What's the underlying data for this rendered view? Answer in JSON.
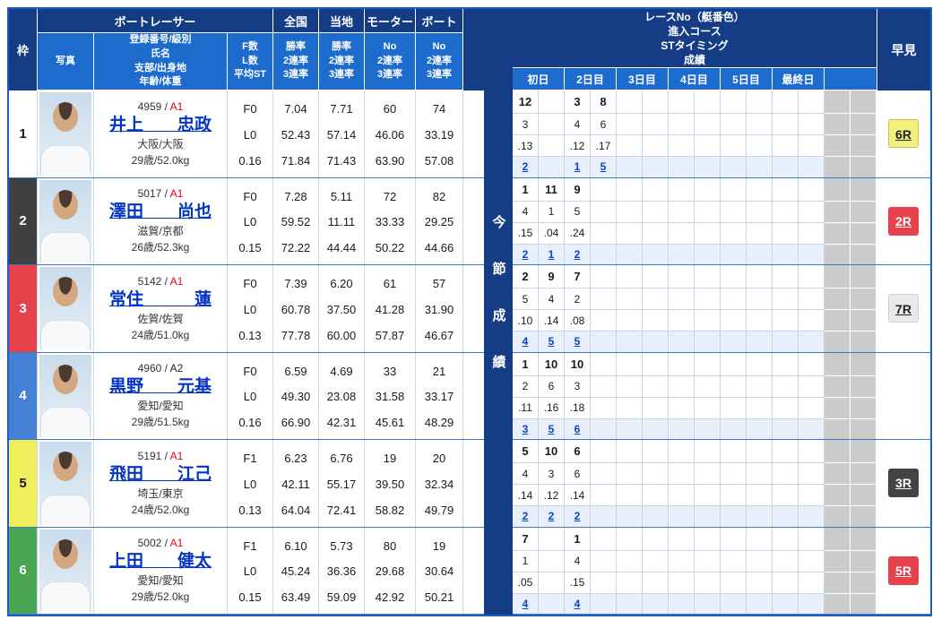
{
  "header": {
    "frame_label": "枠",
    "racer_group_label": "ボートレーサー",
    "photo_label": "写真",
    "profile_label": "登録番号/級別\n氏名\n支部/出身地\n年齢/体重",
    "fl_label": "F数\nL数\n平均ST",
    "national_label": "全国",
    "local_label": "当地",
    "motor_label": "モーター",
    "boat_label": "ボート",
    "rate_label": "勝率\n2連率\n3連率",
    "no_rate_label": "No\n2連率\n3連率",
    "race_info_label": "レースNo（艇番色）\n進入コース\nSTタイミング\n成績",
    "days": [
      "初日",
      "2日目",
      "3日目",
      "4日目",
      "5日目",
      "最終日"
    ],
    "hayami_label": "早見",
    "series_label": "今節成績",
    "reg_separator": " / "
  },
  "racers": [
    {
      "frame": "1",
      "frame_color": "white",
      "reg_no": "4959",
      "class": "A1",
      "name": "井上　　忠政",
      "branch": "大阪/大阪",
      "age_weight": "29歳/52.0kg",
      "f_count": "F0",
      "l_count": "L0",
      "avg_st": "0.16",
      "national": [
        "7.04",
        "52.43",
        "71.84"
      ],
      "local": [
        "7.71",
        "57.14",
        "71.43"
      ],
      "motor": [
        "60",
        "46.06",
        "63.90"
      ],
      "boat": [
        "74",
        "33.19",
        "57.08"
      ],
      "grid": {
        "0": {
          "race": "12",
          "color": "red",
          "course": "3",
          "st": ".13",
          "result": "2"
        },
        "2": {
          "race": "3",
          "color": "blue",
          "course": "4",
          "st": ".12",
          "result": "1"
        },
        "3": {
          "race": "8",
          "color": "green",
          "course": "6",
          "st": ".17",
          "result": "5"
        }
      },
      "hayami": {
        "label": "6R",
        "color": "yellow"
      }
    },
    {
      "frame": "2",
      "frame_color": "black",
      "reg_no": "5017",
      "class": "A1",
      "name": "澤田　　尚也",
      "branch": "滋賀/京都",
      "age_weight": "26歳/52.3kg",
      "f_count": "F0",
      "l_count": "L0",
      "avg_st": "0.15",
      "national": [
        "7.28",
        "59.52",
        "72.22"
      ],
      "local": [
        "5.11",
        "11.11",
        "44.44"
      ],
      "motor": [
        "72",
        "33.33",
        "50.22"
      ],
      "boat": [
        "82",
        "29.25",
        "44.66"
      ],
      "grid": {
        "0": {
          "race": "1",
          "color": "blue",
          "course": "4",
          "st": ".15",
          "result": "2"
        },
        "1": {
          "race": "11",
          "color": "white",
          "course": "1",
          "st": ".04",
          "result": "1"
        },
        "2": {
          "race": "9",
          "color": "yellow",
          "course": "5",
          "st": ".24",
          "result": "2"
        }
      },
      "hayami": {
        "label": "2R",
        "color": "red"
      }
    },
    {
      "frame": "3",
      "frame_color": "red",
      "reg_no": "5142",
      "class": "A1",
      "name": "常住　　　蓮",
      "branch": "佐賀/佐賀",
      "age_weight": "24歳/51.0kg",
      "f_count": "F0",
      "l_count": "L0",
      "avg_st": "0.13",
      "national": [
        "7.39",
        "60.78",
        "77.78"
      ],
      "local": [
        "6.20",
        "37.50",
        "60.00"
      ],
      "motor": [
        "61",
        "41.28",
        "57.87"
      ],
      "boat": [
        "57",
        "31.90",
        "46.67"
      ],
      "grid": {
        "0": {
          "race": "2",
          "color": "yellow",
          "course": "5",
          "st": ".10",
          "result": "4"
        },
        "1": {
          "race": "9",
          "color": "blue",
          "course": "4",
          "st": ".14",
          "result": "5"
        },
        "2": {
          "race": "7",
          "color": "black",
          "course": "2",
          "st": ".08",
          "result": "5"
        }
      },
      "hayami": {
        "label": "7R",
        "color": "white"
      }
    },
    {
      "frame": "4",
      "frame_color": "blue",
      "reg_no": "4960",
      "class": "A2",
      "name": "黒野　　元基",
      "branch": "愛知/愛知",
      "age_weight": "29歳/51.5kg",
      "f_count": "F0",
      "l_count": "L0",
      "avg_st": "0.16",
      "national": [
        "6.59",
        "49.30",
        "66.90"
      ],
      "local": [
        "4.69",
        "23.08",
        "42.31"
      ],
      "motor": [
        "33",
        "31.58",
        "45.61"
      ],
      "boat": [
        "21",
        "33.17",
        "48.29"
      ],
      "grid": {
        "0": {
          "race": "1",
          "color": "black",
          "course": "2",
          "st": ".11",
          "result": "3"
        },
        "1": {
          "race": "10",
          "color": "green",
          "course": "6",
          "st": ".16",
          "result": "5"
        },
        "2": {
          "race": "10",
          "color": "red",
          "course": "3",
          "st": ".18",
          "result": "6"
        }
      }
    },
    {
      "frame": "5",
      "frame_color": "yellow",
      "reg_no": "5191",
      "class": "A1",
      "name": "飛田　　江己",
      "branch": "埼玉/東京",
      "age_weight": "24歳/52.0kg",
      "f_count": "F1",
      "l_count": "L0",
      "avg_st": "0.13",
      "national": [
        "6.23",
        "42.11",
        "64.04"
      ],
      "local": [
        "6.76",
        "55.17",
        "72.41"
      ],
      "motor": [
        "19",
        "39.50",
        "58.82"
      ],
      "boat": [
        "20",
        "32.34",
        "49.79"
      ],
      "grid": {
        "0": {
          "race": "5",
          "color": "blue",
          "course": "4",
          "st": ".14",
          "result": "2"
        },
        "1": {
          "race": "10",
          "color": "red",
          "course": "3",
          "st": ".12",
          "result": "2"
        },
        "2": {
          "race": "6",
          "color": "green",
          "course": "6",
          "st": ".14",
          "result": "2"
        }
      },
      "hayami": {
        "label": "3R",
        "color": "black"
      }
    },
    {
      "frame": "6",
      "frame_color": "green",
      "reg_no": "5002",
      "class": "A1",
      "name": "上田　　健太",
      "branch": "愛知/愛知",
      "age_weight": "29歳/52.0kg",
      "f_count": "F1",
      "l_count": "L0",
      "avg_st": "0.15",
      "national": [
        "6.10",
        "45.24",
        "63.49"
      ],
      "local": [
        "5.73",
        "36.36",
        "59.09"
      ],
      "motor": [
        "80",
        "29.68",
        "42.92"
      ],
      "boat": [
        "19",
        "30.64",
        "50.21"
      ],
      "grid": {
        "0": {
          "race": "7",
          "color": "white",
          "course": "1",
          "st": ".05",
          "result": "4"
        },
        "2": {
          "race": "1",
          "color": "blue",
          "course": "4",
          "st": ".15",
          "result": "4"
        }
      },
      "hayami": {
        "label": "5R",
        "color": "red"
      }
    }
  ]
}
